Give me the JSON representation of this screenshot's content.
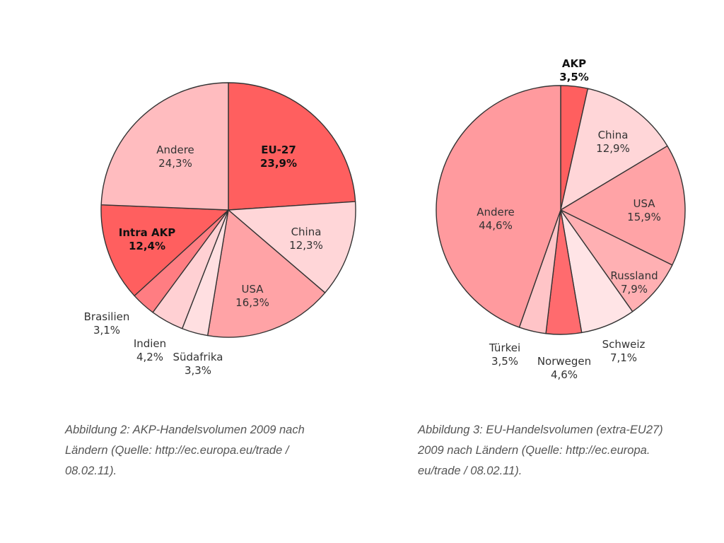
{
  "chart_data": [
    {
      "type": "pie",
      "slices": [
        {
          "name": "EU-27",
          "value": 23.9,
          "label": "23,9%",
          "color": "#ff5f5f",
          "bold": true
        },
        {
          "name": "China",
          "value": 12.3,
          "label": "12,3%",
          "color": "#ffd6d8",
          "bold": false
        },
        {
          "name": "USA",
          "value": 16.3,
          "label": "16,3%",
          "color": "#ffa3a6",
          "bold": false
        },
        {
          "name": "Südafrika",
          "value": 3.3,
          "label": "3,3%",
          "color": "#ffdfe1",
          "bold": false
        },
        {
          "name": "Indien",
          "value": 4.2,
          "label": "4,2%",
          "color": "#ffd0d3",
          "bold": false
        },
        {
          "name": "Brasilien",
          "value": 3.1,
          "label": "3,1%",
          "color": "#ff7d82",
          "bold": false
        },
        {
          "name": "Intra AKP",
          "value": 12.4,
          "label": "12,4%",
          "color": "#ff5f5f",
          "bold": true
        },
        {
          "name": "Andere",
          "value": 24.3,
          "label": "24,3%",
          "color": "#ffbcbf",
          "bold": false
        }
      ]
    },
    {
      "type": "pie",
      "slices": [
        {
          "name": "AKP",
          "value": 3.5,
          "label": "3,5%",
          "color": "#ff5f5f",
          "bold": true
        },
        {
          "name": "China",
          "value": 12.9,
          "label": "12,9%",
          "color": "#ffd6d8",
          "bold": false
        },
        {
          "name": "USA",
          "value": 15.9,
          "label": "15,9%",
          "color": "#ffa3a6",
          "bold": false
        },
        {
          "name": "Russland",
          "value": 7.9,
          "label": "7,9%",
          "color": "#ffb0b3",
          "bold": false
        },
        {
          "name": "Schweiz",
          "value": 7.1,
          "label": "7,1%",
          "color": "#ffe4e6",
          "bold": false
        },
        {
          "name": "Norwegen",
          "value": 4.6,
          "label": "4,6%",
          "color": "#ff6b6e",
          "bold": false
        },
        {
          "name": "Türkei",
          "value": 3.5,
          "label": "3,5%",
          "color": "#ffc4c7",
          "bold": false
        },
        {
          "name": "Andere",
          "value": 44.6,
          "label": "44,6%",
          "color": "#ff9a9e",
          "bold": false
        }
      ]
    }
  ],
  "captions": {
    "left": [
      "Abbildung 2: AKP-Handelsvolumen 2009 nach",
      "Ländern (Quelle: http://ec.europa.eu/trade /",
      "08.02.11)."
    ],
    "right": [
      "Abbildung 3: EU-Handelsvolumen (extra-EU27)",
      "2009 nach Ländern (Quelle: http://ec.europa.",
      "eu/trade / 08.02.11)."
    ]
  }
}
